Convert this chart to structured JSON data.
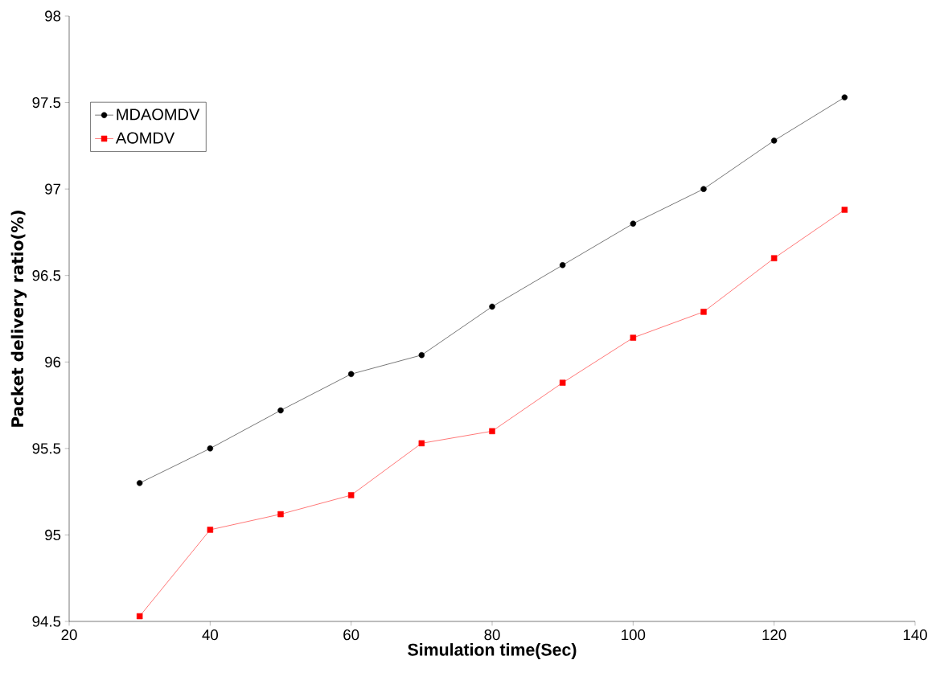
{
  "chart_data": {
    "type": "line",
    "xlabel": "Simulation time(Sec)",
    "ylabel": "Packet delivery ratio(%)",
    "x": [
      30,
      40,
      50,
      60,
      70,
      80,
      90,
      100,
      110,
      120,
      130
    ],
    "series": [
      {
        "name": "MDAOMDV",
        "color": "#000000",
        "marker": "circle",
        "values": [
          95.3,
          95.5,
          95.72,
          95.93,
          96.04,
          96.32,
          96.56,
          96.8,
          97.0,
          97.28,
          97.53
        ]
      },
      {
        "name": "AOMDV",
        "color": "#ff0000",
        "marker": "square",
        "values": [
          94.53,
          95.03,
          95.12,
          95.23,
          95.53,
          95.6,
          95.88,
          96.14,
          96.29,
          96.6,
          96.88
        ]
      }
    ],
    "xlim": [
      20,
      140
    ],
    "ylim": [
      94.5,
      98
    ],
    "xticks": [
      20,
      40,
      60,
      80,
      100,
      120,
      140
    ],
    "yticks": [
      94.5,
      95,
      95.5,
      96,
      96.5,
      97,
      97.5,
      98
    ],
    "grid": false,
    "legend": "top left",
    "line_style": "solid"
  }
}
